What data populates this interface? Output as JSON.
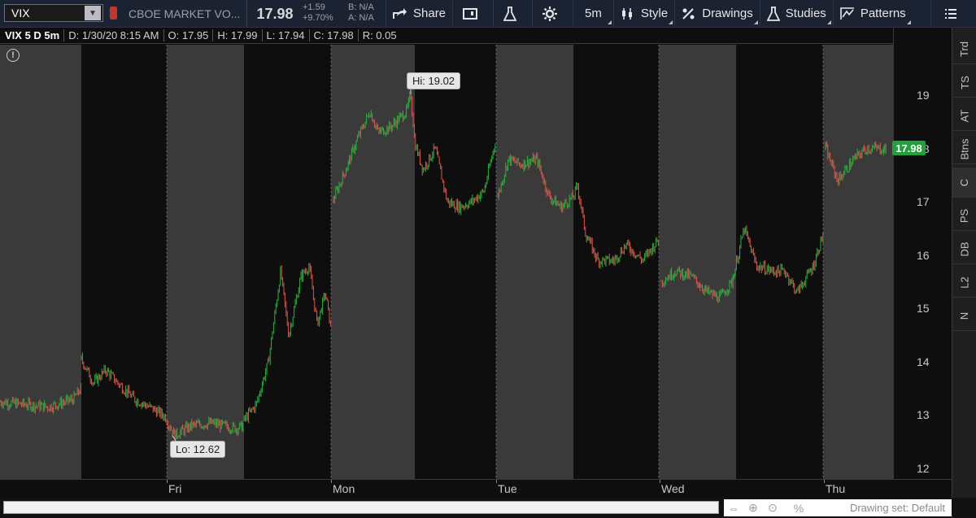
{
  "toolbar": {
    "symbol": "VIX",
    "description": "CBOE MARKET VO...",
    "last_price": "17.98",
    "net_change": "+1.59",
    "percent_change": "+9.70%",
    "bid": "B: N/A",
    "ask": "A: N/A",
    "share_label": "Share",
    "aggregation": "5m",
    "style_label": "Style",
    "drawings_label": "Drawings",
    "studies_label": "Studies",
    "patterns_label": "Patterns"
  },
  "chart_header": {
    "symbol_period": "VIX 5 D 5m",
    "date": "D: 1/30/20 8:15 AM",
    "open": "O: 17.95",
    "high": "H: 17.99",
    "low": "L: 17.94",
    "close": "C: 17.98",
    "range": "R: 0.05"
  },
  "chart": {
    "hi_label": "Hi: 19.02",
    "lo_label": "Lo: 12.62",
    "last_badge": "17.98",
    "price_ticks": [
      "19",
      "18",
      "17",
      "16",
      "15",
      "14",
      "13",
      "12"
    ],
    "day_labels": [
      "Fri",
      "Mon",
      "Tue",
      "Wed",
      "Thu"
    ],
    "up_color": "#1fb83a",
    "down_color": "#e0574d",
    "shade_color": "#3a3a3a"
  },
  "sidebar": {
    "tabs": [
      "Trd",
      "TS",
      "AT",
      "Btns",
      "C",
      "PS",
      "DB",
      "L2",
      "N"
    ]
  },
  "bottom": {
    "drawing_set": "Drawing set: Default"
  },
  "chart_data": {
    "type": "candlestick",
    "ylim": [
      11.8,
      19.7
    ],
    "segments": [
      {
        "session": "Wed-ext",
        "anchors": [
          [
            0,
            13.25
          ],
          [
            30,
            13.2
          ],
          [
            60,
            13.15
          ],
          [
            90,
            13.3
          ],
          [
            100,
            13.5
          ]
        ]
      },
      {
        "session": "Thu",
        "anchors": [
          [
            100,
            14.05
          ],
          [
            115,
            13.6
          ],
          [
            130,
            13.85
          ],
          [
            145,
            13.6
          ],
          [
            165,
            13.3
          ],
          [
            190,
            13.1
          ],
          [
            205,
            12.95
          ]
        ]
      },
      {
        "session": "Thu-ext",
        "anchors": [
          [
            205,
            12.9
          ],
          [
            215,
            12.62
          ],
          [
            235,
            12.8
          ],
          [
            260,
            12.85
          ],
          [
            290,
            12.75
          ],
          [
            300,
            12.8
          ]
        ]
      },
      {
        "session": "Fri",
        "anchors": [
          [
            300,
            12.9
          ],
          [
            315,
            13.2
          ],
          [
            330,
            14.0
          ],
          [
            345,
            15.7
          ],
          [
            355,
            14.5
          ],
          [
            370,
            15.6
          ],
          [
            380,
            15.8
          ],
          [
            390,
            14.7
          ],
          [
            400,
            15.3
          ],
          [
            407,
            14.6
          ]
        ]
      },
      {
        "session": "Mon",
        "anchors": [
          [
            410,
            17.05
          ],
          [
            425,
            17.6
          ],
          [
            440,
            18.2
          ],
          [
            455,
            18.7
          ],
          [
            465,
            18.3
          ],
          [
            480,
            18.4
          ],
          [
            490,
            18.55
          ],
          [
            500,
            18.7
          ],
          [
            505,
            19.02
          ],
          [
            510,
            18.1
          ],
          [
            520,
            17.6
          ],
          [
            535,
            18.0
          ],
          [
            550,
            17.0
          ],
          [
            565,
            16.9
          ],
          [
            580,
            17.0
          ],
          [
            595,
            17.2
          ],
          [
            610,
            18.2
          ]
        ]
      },
      {
        "session": "Tue",
        "anchors": [
          [
            612,
            17.1
          ],
          [
            625,
            17.8
          ],
          [
            640,
            17.7
          ],
          [
            660,
            17.8
          ],
          [
            675,
            17.1
          ],
          [
            690,
            16.9
          ],
          [
            705,
            17.1
          ],
          [
            710,
            17.3
          ],
          [
            720,
            16.4
          ],
          [
            735,
            15.9
          ],
          [
            755,
            15.9
          ],
          [
            770,
            16.2
          ],
          [
            790,
            15.9
          ],
          [
            810,
            16.3
          ]
        ]
      },
      {
        "session": "Tue-ext",
        "anchors": [
          [
            813,
            15.5
          ],
          [
            830,
            15.7
          ],
          [
            850,
            15.6
          ],
          [
            870,
            15.3
          ],
          [
            885,
            15.2
          ],
          [
            900,
            15.5
          ],
          [
            915,
            16.5
          ],
          [
            930,
            15.8
          ],
          [
            950,
            15.7
          ],
          [
            965,
            15.7
          ],
          [
            980,
            15.3
          ],
          [
            1000,
            15.8
          ],
          [
            1012,
            16.4
          ]
        ]
      },
      {
        "session": "Wed",
        "anchors": [
          [
            1015,
            18.0
          ],
          [
            1030,
            17.4
          ],
          [
            1050,
            17.8
          ],
          [
            1065,
            18.0
          ],
          [
            1080,
            18.0
          ],
          [
            1090,
            17.98
          ]
        ]
      }
    ]
  }
}
